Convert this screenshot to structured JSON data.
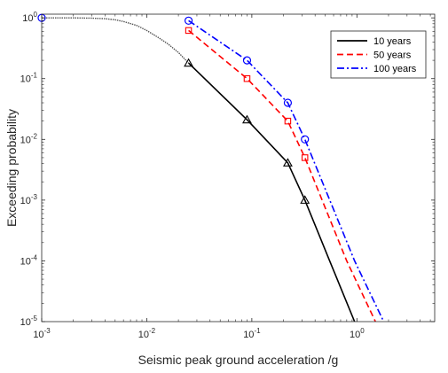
{
  "chart_data": {
    "type": "line",
    "xlabel": "Seismic peak ground acceleration /g",
    "ylabel": "Exceeding probability",
    "xscale": "log",
    "yscale": "log",
    "xlim": [
      0.001,
      5.5
    ],
    "ylim": [
      1e-05,
      1.15
    ],
    "grid": false,
    "legend_position": "top-right",
    "x_ticks": [
      {
        "value": 0.001,
        "base": "10",
        "exp": "-3"
      },
      {
        "value": 0.01,
        "base": "10",
        "exp": "-2"
      },
      {
        "value": 0.1,
        "base": "10",
        "exp": "-1"
      },
      {
        "value": 1,
        "base": "10",
        "exp": "0"
      }
    ],
    "y_ticks": [
      {
        "value": 1e-05,
        "base": "10",
        "exp": "-5"
      },
      {
        "value": 0.0001,
        "base": "10",
        "exp": "-4"
      },
      {
        "value": 0.001,
        "base": "10",
        "exp": "-3"
      },
      {
        "value": 0.01,
        "base": "10",
        "exp": "-2"
      },
      {
        "value": 0.1,
        "base": "10",
        "exp": "-1"
      },
      {
        "value": 1,
        "base": "10",
        "exp": "0"
      }
    ],
    "common_start": {
      "color": "#555555",
      "points": [
        [
          0.001,
          1.0
        ],
        [
          0.002,
          0.999
        ],
        [
          0.003,
          0.99
        ],
        [
          0.004,
          0.97
        ],
        [
          0.005,
          0.93
        ],
        [
          0.006,
          0.87
        ],
        [
          0.008,
          0.75
        ],
        [
          0.01,
          0.62
        ],
        [
          0.013,
          0.47
        ],
        [
          0.016,
          0.37
        ],
        [
          0.02,
          0.27
        ],
        [
          0.025,
          0.18
        ]
      ]
    },
    "series": [
      {
        "name": "10 years",
        "color": "#000000",
        "dash": "solid",
        "marker": "triangle",
        "points": [
          [
            0.025,
            0.18
          ],
          [
            0.09,
            0.021
          ],
          [
            0.22,
            0.0041
          ],
          [
            0.32,
            0.001
          ],
          [
            0.55,
            0.0001
          ],
          [
            0.95,
            1e-05
          ]
        ],
        "marker_points": [
          [
            0.025,
            0.18
          ],
          [
            0.09,
            0.021
          ],
          [
            0.22,
            0.0041
          ],
          [
            0.32,
            0.001
          ]
        ]
      },
      {
        "name": "50 years",
        "color": "#ff0000",
        "dash": "dashed",
        "marker": "square",
        "points": [
          [
            0.025,
            0.62
          ],
          [
            0.09,
            0.1
          ],
          [
            0.22,
            0.02
          ],
          [
            0.32,
            0.005
          ],
          [
            0.8,
            0.0001
          ],
          [
            1.5,
            1e-05
          ]
        ],
        "marker_points": [
          [
            0.025,
            0.62
          ],
          [
            0.09,
            0.1
          ],
          [
            0.22,
            0.02
          ],
          [
            0.32,
            0.005
          ]
        ]
      },
      {
        "name": "100 years",
        "color": "#0000ff",
        "dash": "dashdot",
        "marker": "circle",
        "points": [
          [
            0.025,
            0.9
          ],
          [
            0.09,
            0.2
          ],
          [
            0.22,
            0.04
          ],
          [
            0.32,
            0.01
          ],
          [
            0.95,
            0.0001
          ],
          [
            1.8,
            1e-05
          ]
        ],
        "marker_points": [
          [
            0.001,
            1.0
          ],
          [
            0.025,
            0.9
          ],
          [
            0.09,
            0.2
          ],
          [
            0.22,
            0.04
          ],
          [
            0.32,
            0.01
          ]
        ]
      }
    ]
  }
}
